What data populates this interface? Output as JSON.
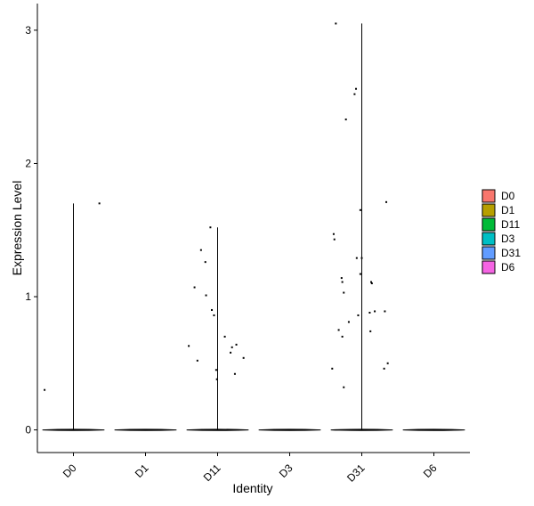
{
  "chart_data": {
    "type": "violin",
    "xlabel": "Identity",
    "ylabel": "Expression Level",
    "categories": [
      "D0",
      "D1",
      "D11",
      "D3",
      "D31",
      "D6"
    ],
    "ylim": [
      -0.17,
      3.2
    ],
    "yticks": [
      0,
      1,
      2,
      3
    ],
    "legend": {
      "position": "right",
      "entries": [
        {
          "label": "D0",
          "color": "#F8766D"
        },
        {
          "label": "D1",
          "color": "#B79F00"
        },
        {
          "label": "D11",
          "color": "#00BA38"
        },
        {
          "label": "D3",
          "color": "#00BFC4"
        },
        {
          "label": "D31",
          "color": "#619CFF"
        },
        {
          "label": "D6",
          "color": "#F564E3"
        }
      ]
    },
    "groups": [
      {
        "name": "D0",
        "max": 1.7,
        "points": [
          [
            -0.4,
            0.3
          ],
          [
            0.36,
            1.7
          ]
        ]
      },
      {
        "name": "D1",
        "max": 0,
        "points": []
      },
      {
        "name": "D11",
        "max": 1.52,
        "points": [
          [
            -0.1,
            1.52
          ],
          [
            -0.23,
            1.35
          ],
          [
            -0.17,
            1.26
          ],
          [
            -0.32,
            1.07
          ],
          [
            -0.16,
            1.01
          ],
          [
            -0.08,
            0.9
          ],
          [
            -0.05,
            0.86
          ],
          [
            -0.4,
            0.63
          ],
          [
            -0.28,
            0.52
          ],
          [
            0.1,
            0.7
          ],
          [
            0.26,
            0.64
          ],
          [
            0.2,
            0.62
          ],
          [
            0.18,
            0.58
          ],
          [
            0.36,
            0.54
          ],
          [
            -0.02,
            0.45
          ],
          [
            0.24,
            0.42
          ],
          [
            -0.01,
            0.38
          ]
        ]
      },
      {
        "name": "D3",
        "max": 0,
        "points": []
      },
      {
        "name": "D31",
        "max": 3.05,
        "points": [
          [
            -0.36,
            3.05
          ],
          [
            -0.08,
            2.56
          ],
          [
            -0.1,
            2.52
          ],
          [
            -0.22,
            2.33
          ],
          [
            -0.02,
            1.65
          ],
          [
            0.34,
            1.71
          ],
          [
            -0.39,
            1.47
          ],
          [
            -0.38,
            1.43
          ],
          [
            -0.07,
            1.29
          ],
          [
            0.0,
            1.29
          ],
          [
            -0.02,
            1.17
          ],
          [
            -0.28,
            1.14
          ],
          [
            -0.27,
            1.11
          ],
          [
            0.13,
            1.11
          ],
          [
            0.14,
            1.1
          ],
          [
            -0.25,
            1.03
          ],
          [
            0.11,
            0.88
          ],
          [
            0.18,
            0.89
          ],
          [
            0.32,
            0.89
          ],
          [
            -0.05,
            0.86
          ],
          [
            -0.18,
            0.81
          ],
          [
            -0.32,
            0.75
          ],
          [
            -0.27,
            0.7
          ],
          [
            0.12,
            0.74
          ],
          [
            0.36,
            0.5
          ],
          [
            0.31,
            0.46
          ],
          [
            -0.41,
            0.46
          ],
          [
            -0.25,
            0.32
          ]
        ]
      },
      {
        "name": "D6",
        "max": 0,
        "points": []
      }
    ]
  }
}
